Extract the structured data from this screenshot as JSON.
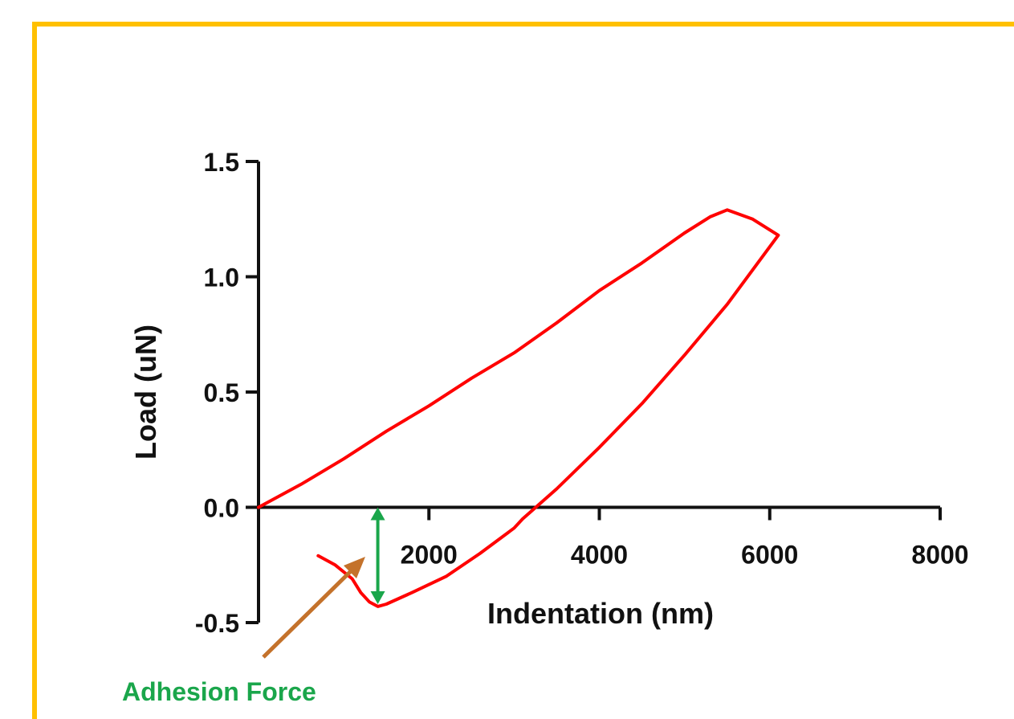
{
  "frame_color": "#ffc000",
  "chart_data": {
    "type": "line",
    "title": "",
    "xlabel": "Indentation (nm)",
    "ylabel": "Load (uN)",
    "xlim": [
      0,
      8000
    ],
    "ylim": [
      -0.5,
      1.5
    ],
    "x_ticks": [
      2000,
      4000,
      6000,
      8000
    ],
    "x_tick_labels": [
      "2000",
      "4000",
      "6000",
      "8000"
    ],
    "y_ticks": [
      -0.5,
      0.0,
      0.5,
      1.0,
      1.5
    ],
    "y_tick_labels": [
      "-0.5",
      "0.0",
      "0.5",
      "1.0",
      "1.5"
    ],
    "grid": false,
    "series": [
      {
        "color": "#ff0000",
        "points": [
          [
            0,
            0.0
          ],
          [
            500,
            0.1
          ],
          [
            1000,
            0.21
          ],
          [
            1500,
            0.33
          ],
          [
            2000,
            0.44
          ],
          [
            2500,
            0.56
          ],
          [
            3000,
            0.67
          ],
          [
            3500,
            0.8
          ],
          [
            4000,
            0.94
          ],
          [
            4500,
            1.06
          ],
          [
            5000,
            1.19
          ],
          [
            5300,
            1.26
          ],
          [
            5500,
            1.29
          ],
          [
            5800,
            1.25
          ],
          [
            6100,
            1.18
          ],
          [
            5800,
            1.03
          ],
          [
            5500,
            0.88
          ],
          [
            5000,
            0.66
          ],
          [
            4500,
            0.45
          ],
          [
            4000,
            0.26
          ],
          [
            3500,
            0.08
          ],
          [
            3100,
            -0.05
          ],
          [
            3000,
            -0.09
          ],
          [
            2600,
            -0.2
          ],
          [
            2200,
            -0.3
          ],
          [
            1800,
            -0.37
          ],
          [
            1500,
            -0.42
          ],
          [
            1400,
            -0.43
          ],
          [
            1300,
            -0.41
          ],
          [
            1200,
            -0.37
          ],
          [
            1100,
            -0.31
          ],
          [
            900,
            -0.25
          ],
          [
            700,
            -0.21
          ]
        ]
      }
    ],
    "annotations": {
      "adhesion": {
        "label": "Adhesion Force",
        "label_color": "#1aa64b",
        "arrow_color": "#1aa64b",
        "x": 1400,
        "y_from": 0.0,
        "y_to": -0.42
      },
      "pointer_arrow_color": "#c4722b"
    }
  }
}
